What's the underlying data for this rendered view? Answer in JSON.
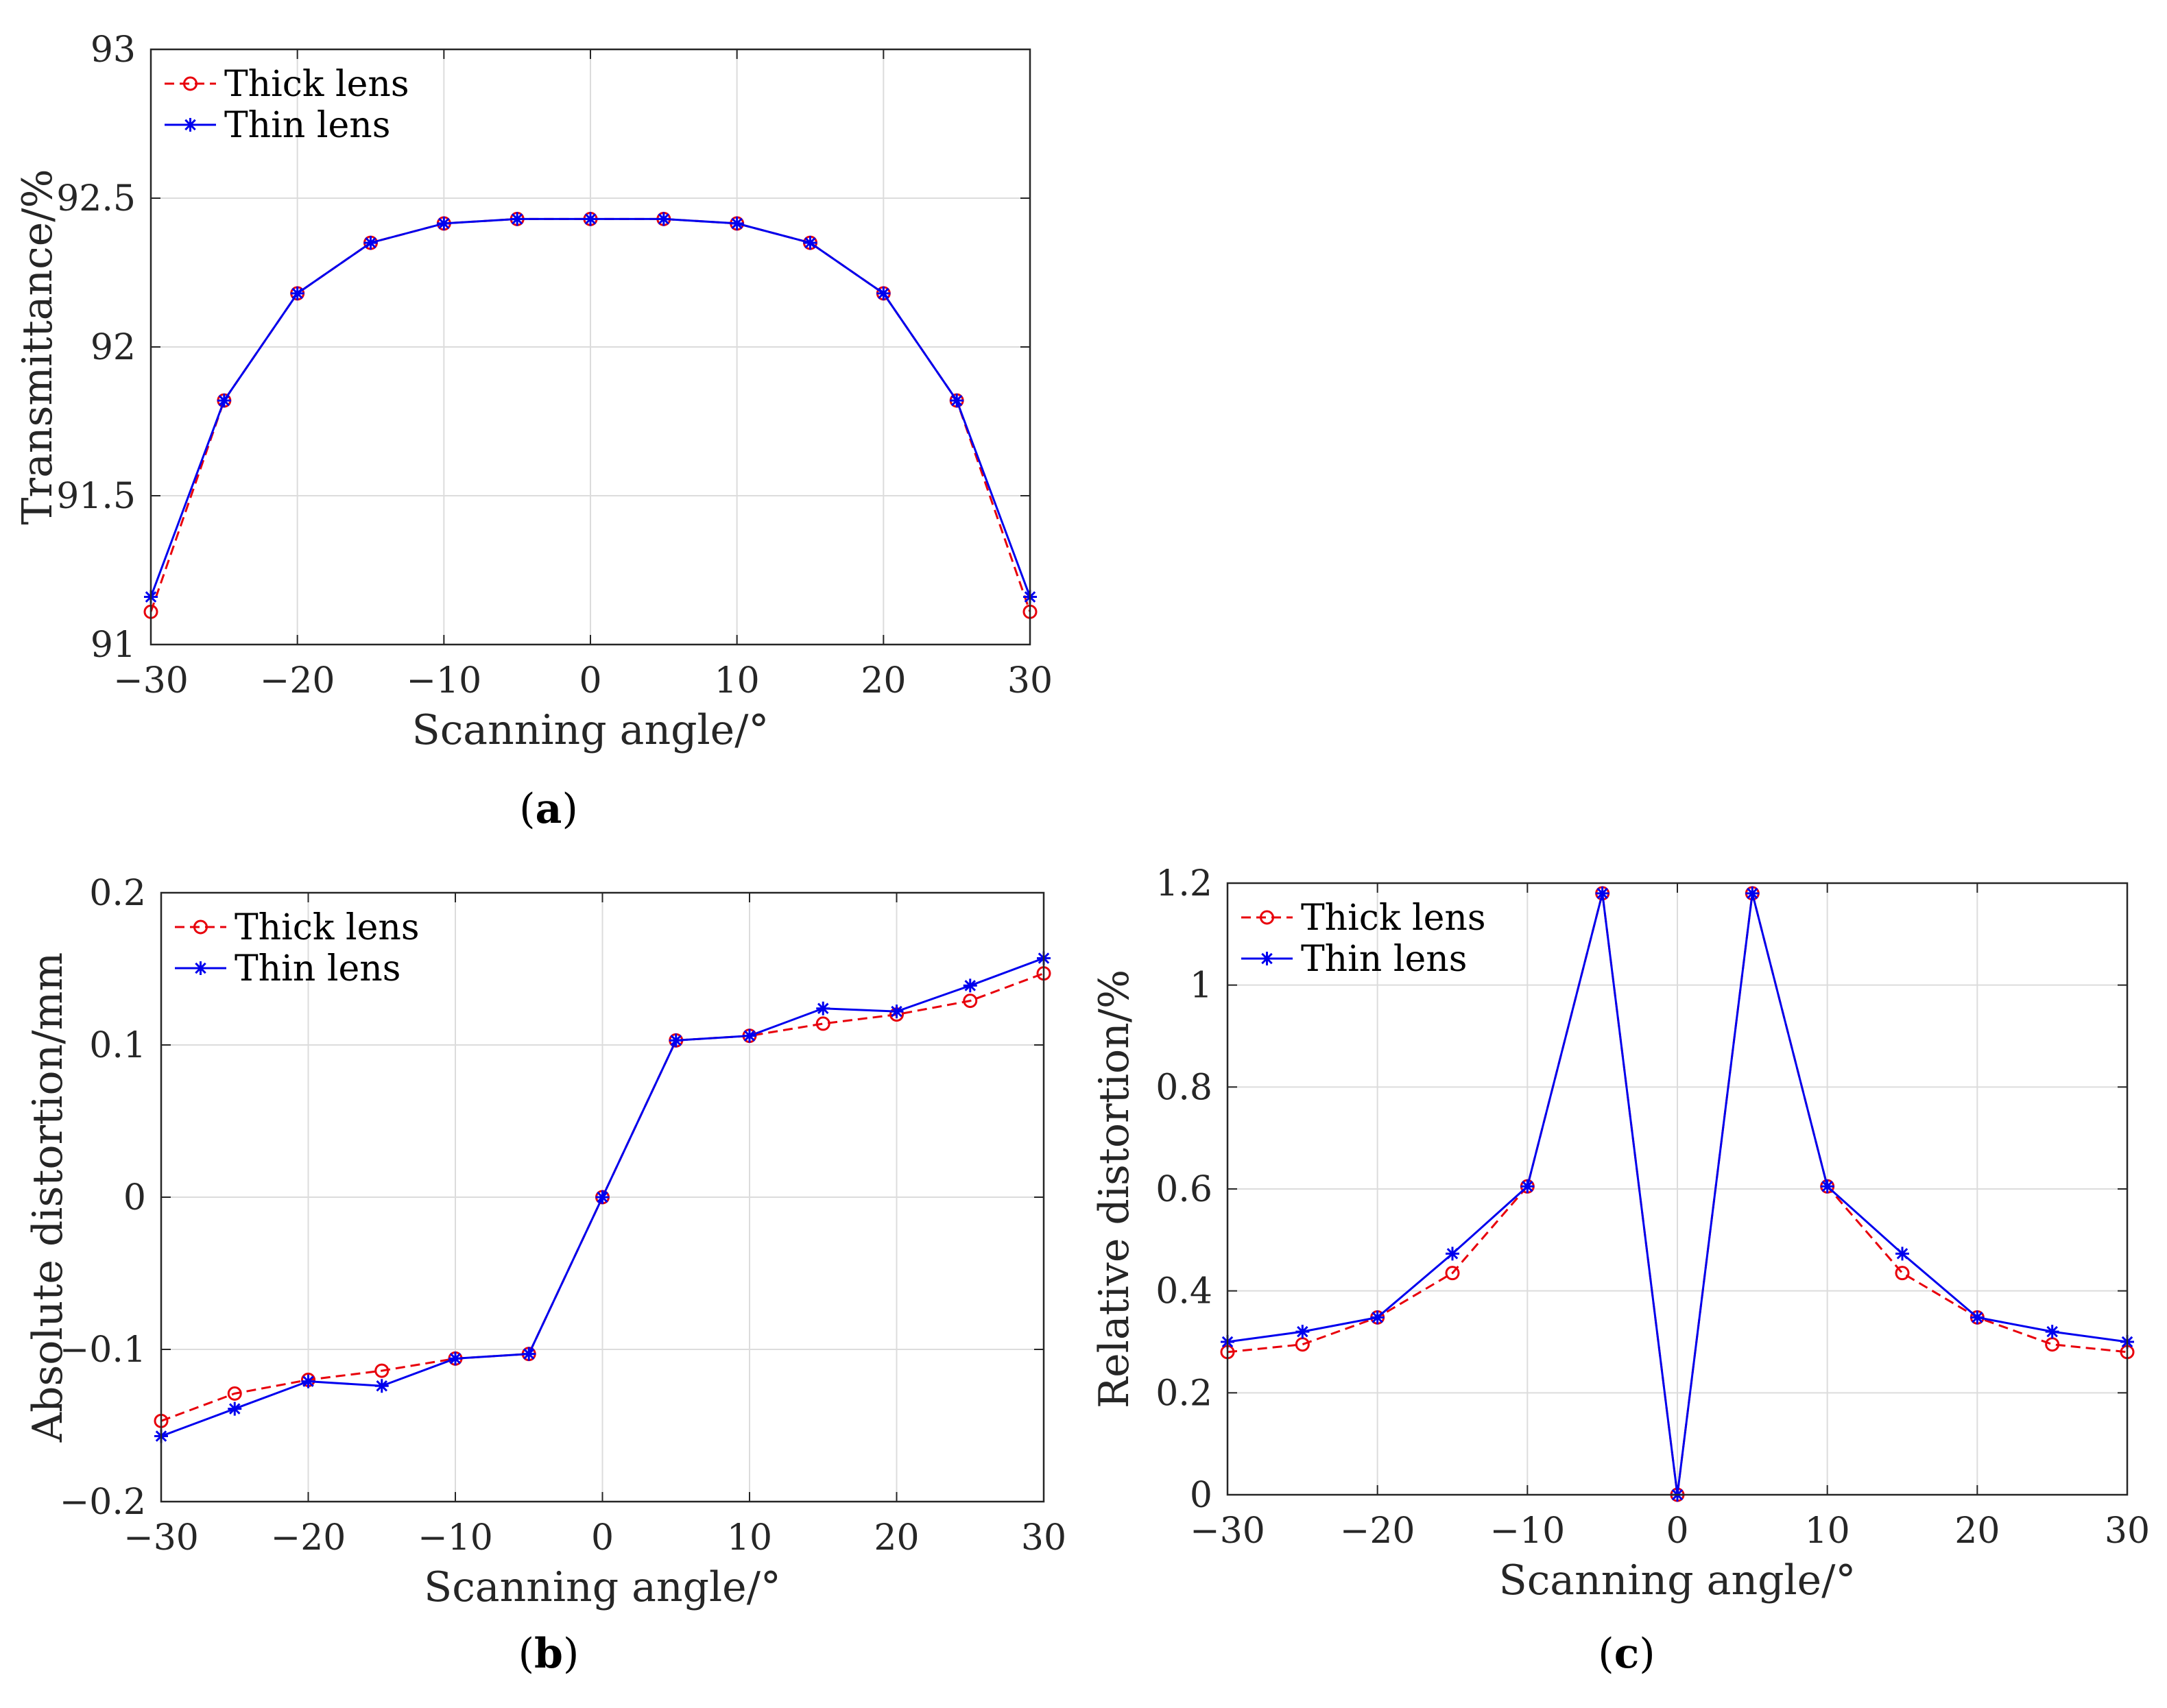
{
  "chart_data": [
    {
      "panel_label": "(a)",
      "panel_letter": "a",
      "type": "line",
      "title": "",
      "xlabel": "Scanning angle/°",
      "ylabel": "Transmittance/%",
      "xlim": [
        -30,
        30
      ],
      "ylim": [
        91,
        93
      ],
      "xticks": [
        -30,
        -20,
        -10,
        0,
        10,
        20,
        30
      ],
      "yticks": [
        91,
        91.5,
        92,
        92.5,
        93
      ],
      "xtick_labels": [
        "−30",
        "−20",
        "−10",
        "0",
        "10",
        "20",
        "30"
      ],
      "ytick_labels": [
        "91",
        "91.5",
        "92",
        "92.5",
        "93"
      ],
      "grid": true,
      "legend_position": "top-left",
      "x": [
        -30,
        -25,
        -20,
        -15,
        -10,
        -5,
        0,
        5,
        10,
        15,
        20,
        25,
        30
      ],
      "series": [
        {
          "name": "Thick lens",
          "color": "#e8000b",
          "line": "dashed",
          "marker": "circle",
          "values": [
            91.11,
            91.82,
            92.18,
            92.35,
            92.415,
            92.43,
            92.43,
            92.43,
            92.415,
            92.35,
            92.18,
            91.82,
            91.11
          ]
        },
        {
          "name": "Thin lens",
          "color": "#0000ee",
          "line": "solid",
          "marker": "star",
          "values": [
            91.16,
            91.82,
            92.18,
            92.35,
            92.415,
            92.43,
            92.43,
            92.43,
            92.415,
            92.35,
            92.18,
            91.82,
            91.16
          ]
        }
      ]
    },
    {
      "panel_label": "(b)",
      "panel_letter": "b",
      "type": "line",
      "title": "",
      "xlabel": "Scanning angle/°",
      "ylabel": "Absolute distortion/mm",
      "xlim": [
        -30,
        30
      ],
      "ylim": [
        -0.2,
        0.2
      ],
      "xticks": [
        -30,
        -20,
        -10,
        0,
        10,
        20,
        30
      ],
      "yticks": [
        -0.2,
        -0.1,
        0,
        0.1,
        0.2
      ],
      "xtick_labels": [
        "−30",
        "−20",
        "−10",
        "0",
        "10",
        "20",
        "30"
      ],
      "ytick_labels": [
        "−0.2",
        "−0.1",
        "0",
        "0.1",
        "0.2"
      ],
      "grid": true,
      "legend_position": "top-left",
      "x": [
        -30,
        -25,
        -20,
        -15,
        -10,
        -5,
        0,
        5,
        10,
        15,
        20,
        25,
        30
      ],
      "series": [
        {
          "name": "Thick lens",
          "color": "#e8000b",
          "line": "dashed",
          "marker": "circle",
          "values": [
            -0.147,
            -0.129,
            -0.12,
            -0.114,
            -0.106,
            -0.103,
            0,
            0.103,
            0.106,
            0.114,
            0.12,
            0.129,
            0.147
          ]
        },
        {
          "name": "Thin lens",
          "color": "#0000ee",
          "line": "solid",
          "marker": "star",
          "values": [
            -0.157,
            -0.139,
            -0.121,
            -0.124,
            -0.106,
            -0.103,
            0,
            0.103,
            0.106,
            0.124,
            0.122,
            0.139,
            0.157
          ]
        }
      ]
    },
    {
      "panel_label": "(c)",
      "panel_letter": "c",
      "type": "line",
      "title": "",
      "xlabel": "Scanning angle/°",
      "ylabel": "Relative distortion/%",
      "xlim": [
        -30,
        30
      ],
      "ylim": [
        0,
        1.2
      ],
      "xticks": [
        -30,
        -20,
        -10,
        0,
        10,
        20,
        30
      ],
      "yticks": [
        0,
        0.2,
        0.4,
        0.6,
        0.8,
        1,
        1.2
      ],
      "xtick_labels": [
        "−30",
        "−20",
        "−10",
        "0",
        "10",
        "20",
        "30"
      ],
      "ytick_labels": [
        "0",
        "0.2",
        "0.4",
        "0.6",
        "0.8",
        "1",
        "1.2"
      ],
      "grid": true,
      "legend_position": "top-left",
      "x": [
        -30,
        -25,
        -20,
        -15,
        -10,
        -5,
        0,
        5,
        10,
        15,
        20,
        25,
        30
      ],
      "series": [
        {
          "name": "Thick lens",
          "color": "#e8000b",
          "line": "dashed",
          "marker": "circle",
          "values": [
            0.28,
            0.295,
            0.348,
            0.435,
            0.605,
            1.18,
            0,
            1.18,
            0.605,
            0.435,
            0.348,
            0.295,
            0.28
          ]
        },
        {
          "name": "Thin lens",
          "color": "#0000ee",
          "line": "solid",
          "marker": "star",
          "values": [
            0.3,
            0.32,
            0.348,
            0.473,
            0.605,
            1.18,
            0,
            1.18,
            0.605,
            0.473,
            0.348,
            0.32,
            0.3
          ]
        }
      ]
    }
  ]
}
